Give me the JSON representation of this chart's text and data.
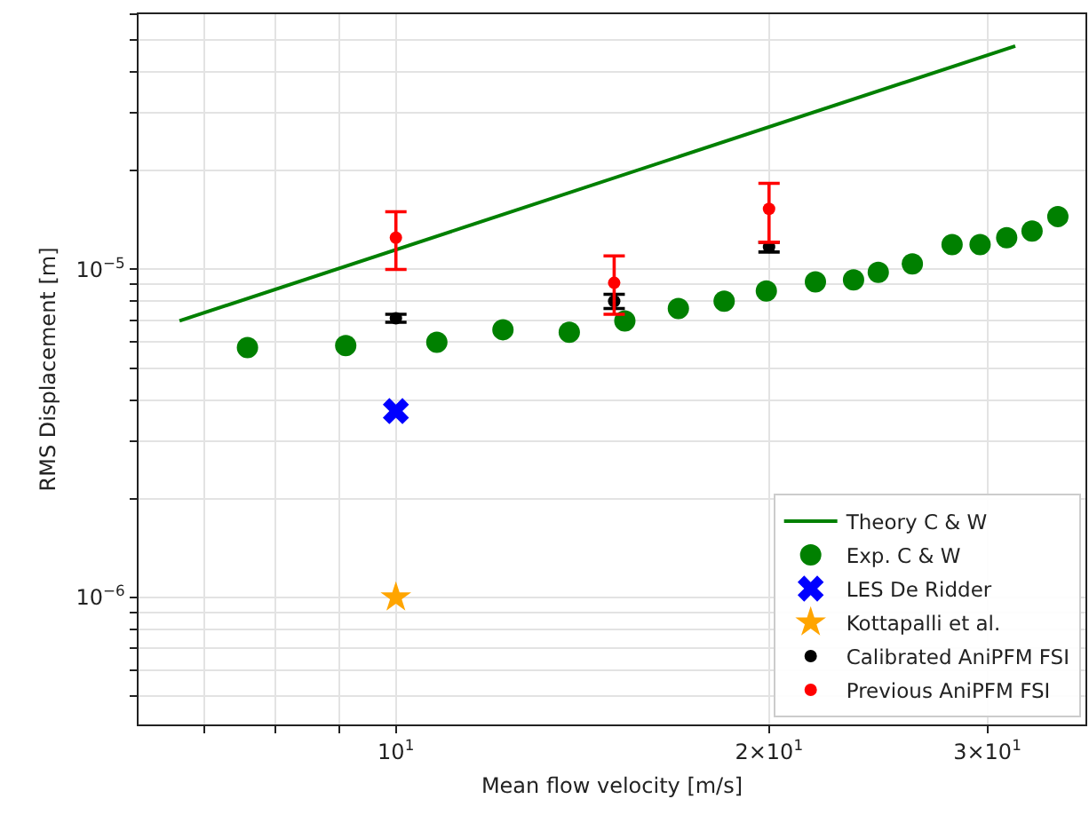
{
  "chart_data": {
    "type": "scatter",
    "xlabel": "Mean flow velocity [m/s]",
    "ylabel": "RMS Displacement [m]",
    "log": "xy",
    "grid": true,
    "legend": "bottom right",
    "xlim": [
      6.2,
      36
    ],
    "ylim": [
      4.1e-07,
      6e-05
    ],
    "xticks": [
      {
        "value": 7,
        "label": null
      },
      {
        "value": 8,
        "label": null
      },
      {
        "value": 9,
        "label": null
      },
      {
        "value": 10,
        "label": "10$^{1}$"
      },
      {
        "value": 20,
        "label": "2×10$^{1}$"
      },
      {
        "value": 30,
        "label": "3×10$^{1}$"
      }
    ],
    "yticks": [
      {
        "value": 5e-07,
        "label": null
      },
      {
        "value": 6e-07,
        "label": null
      },
      {
        "value": 7e-07,
        "label": null
      },
      {
        "value": 8e-07,
        "label": null
      },
      {
        "value": 9e-07,
        "label": null
      },
      {
        "value": 1e-06,
        "label": "10$^{−6}$"
      },
      {
        "value": 2e-06,
        "label": null
      },
      {
        "value": 3e-06,
        "label": null
      },
      {
        "value": 4e-06,
        "label": null
      },
      {
        "value": 5e-06,
        "label": null
      },
      {
        "value": 6e-06,
        "label": null
      },
      {
        "value": 7e-06,
        "label": null
      },
      {
        "value": 8e-06,
        "label": null
      },
      {
        "value": 9e-06,
        "label": null
      },
      {
        "value": 1e-05,
        "label": "10$^{−5}$"
      },
      {
        "value": 2e-05,
        "label": null
      },
      {
        "value": 3e-05,
        "label": null
      },
      {
        "value": 4e-05,
        "label": null
      },
      {
        "value": 5e-05,
        "label": null
      },
      {
        "value": 6e-05,
        "label": null
      }
    ],
    "series": [
      {
        "name": "Theory C & W",
        "type": "line",
        "color": "#008000",
        "marker": "none",
        "x": [
          6.69,
          31.6
        ],
        "values": [
          6.97e-06,
          4.8e-05
        ]
      },
      {
        "name": "Exp. C & W",
        "type": "scatter",
        "color": "#008000",
        "marker": "circle",
        "x": [
          7.59,
          9.11,
          10.79,
          12.2,
          13.8,
          15.3,
          16.9,
          18.4,
          19.9,
          21.8,
          23.4,
          24.5,
          26.1,
          28.1,
          29.6,
          31.1,
          32.6,
          34.2
        ],
        "values": [
          5.78e-06,
          5.86e-06,
          6e-06,
          6.55e-06,
          6.43e-06,
          6.97e-06,
          7.6e-06,
          8e-06,
          8.6e-06,
          9.17e-06,
          9.3e-06,
          9.8e-06,
          1.04e-05,
          1.19e-05,
          1.19e-05,
          1.25e-05,
          1.31e-05,
          1.45e-05
        ]
      },
      {
        "name": "LES De Ridder",
        "type": "scatter",
        "color": "#0000ff",
        "marker": "cross",
        "x": [
          10
        ],
        "values": [
          3.7e-06
        ]
      },
      {
        "name": "Kottapalli et al.",
        "type": "scatter",
        "color": "#ffa500",
        "marker": "star",
        "x": [
          10
        ],
        "values": [
          1e-06
        ]
      },
      {
        "name": "Calibrated AniPFM FSI",
        "type": "scatter",
        "color": "#000000",
        "marker": "circle",
        "x": [
          10,
          15,
          20
        ],
        "values": [
          7.1e-06,
          8e-06,
          1.17e-05
        ],
        "errors": [
          [
            6.9e-06,
            7.3e-06
          ],
          [
            7.6e-06,
            8.4e-06
          ],
          [
            1.13e-05,
            1.21e-05
          ]
        ]
      },
      {
        "name": "Previous AniPFM FSI",
        "type": "scatter",
        "color": "#ff0000",
        "marker": "circle",
        "x": [
          10,
          15,
          20
        ],
        "values": [
          1.25e-05,
          9.1e-06,
          1.53e-05
        ],
        "errors": [
          [
            1e-05,
            1.5e-05
          ],
          [
            7.3e-06,
            1.1e-05
          ],
          [
            1.21e-05,
            1.83e-05
          ]
        ]
      }
    ]
  }
}
